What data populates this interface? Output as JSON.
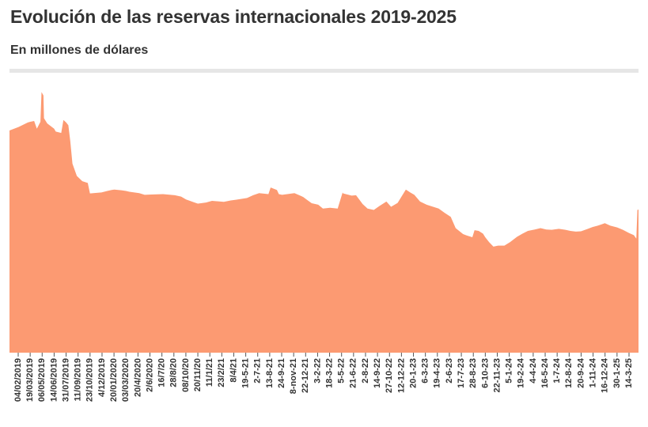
{
  "title": "Evolución de las reservas internacionales 2019-2025",
  "subtitle": "En millones de dólares",
  "colors": {
    "area": "#fc9a72",
    "text": "#333333",
    "rule": "#e6e6e6"
  },
  "chart_data": {
    "type": "area",
    "title": "Evolución de las reservas internacionales 2019-2025",
    "subtitle": "En millones de dólares",
    "xlabel": "",
    "ylabel": "",
    "grid": false,
    "legend": "none",
    "x_tick_labels": [
      "04/02/2019",
      "19/03/2019",
      "06/05/2019",
      "14/06/2019",
      "31/07/2019",
      "11/09/2019",
      "23/10/2019",
      "4/12/2019",
      "20/01/2020",
      "03/03/2020",
      "20/4/2020",
      "2/6/2020",
      "16/7/20",
      "28/8/20",
      "08/10/20",
      "20/11/20",
      "11/1/21",
      "23/2/21",
      "8/4/21",
      "19-5-21",
      "2-7-21",
      "13-8-21",
      "24-9-21",
      "8-nov-21",
      "22-12-21",
      "3-2-22",
      "18-3-22",
      "5-5-22",
      "21-6-22",
      "2-8-22",
      "14-9-22",
      "27-10-22",
      "12-12-22",
      "20-1-23",
      "6-3-23",
      "19-4-23",
      "2-6-23",
      "17-7-23",
      "28-8-23",
      "6-10-23",
      "22-11-23",
      "5-1-24",
      "19-2-24",
      "4-4-24",
      "16-5-24",
      "1-7-24",
      "12-8-24",
      "20-9-24",
      "1-11-24",
      "16-12-24",
      "30-1-25",
      "14-3-25"
    ],
    "points": [
      [
        "2019-01-02",
        63.5
      ],
      [
        "2019-02-04",
        64.5
      ],
      [
        "2019-03-10",
        65.8
      ],
      [
        "2019-03-19",
        66
      ],
      [
        "2019-04-02",
        66.2
      ],
      [
        "2019-04-12",
        64
      ],
      [
        "2019-04-25",
        66
      ],
      [
        "2019-04-29",
        74.5
      ],
      [
        "2019-05-06",
        73.5
      ],
      [
        "2019-05-08",
        67
      ],
      [
        "2019-05-20",
        65.5
      ],
      [
        "2019-06-14",
        64
      ],
      [
        "2019-06-20",
        63.2
      ],
      [
        "2019-07-10",
        62.8
      ],
      [
        "2019-07-18",
        66.5
      ],
      [
        "2019-07-28",
        65.8
      ],
      [
        "2019-08-05",
        65
      ],
      [
        "2019-08-12",
        60.5
      ],
      [
        "2019-08-20",
        54
      ],
      [
        "2019-09-05",
        50.5
      ],
      [
        "2019-09-25",
        49
      ],
      [
        "2019-10-15",
        48.5
      ],
      [
        "2019-10-23",
        45.5
      ],
      [
        "2019-12-04",
        45.8
      ],
      [
        "2019-12-25",
        46.2
      ],
      [
        "2020-01-10",
        46.5
      ],
      [
        "2020-01-20",
        46.6
      ],
      [
        "2020-02-15",
        46.4
      ],
      [
        "2020-03-03",
        46.2
      ],
      [
        "2020-03-15",
        46
      ],
      [
        "2020-04-20",
        45.6
      ],
      [
        "2020-05-10",
        45.1
      ],
      [
        "2020-06-02",
        45.2
      ],
      [
        "2020-07-16",
        45.3
      ],
      [
        "2020-08-28",
        45
      ],
      [
        "2020-09-20",
        44.6
      ],
      [
        "2020-10-08",
        43.8
      ],
      [
        "2020-11-05",
        43
      ],
      [
        "2020-11-20",
        42.6
      ],
      [
        "2020-12-20",
        42.9
      ],
      [
        "2021-01-11",
        43.4
      ],
      [
        "2021-02-23",
        43.1
      ],
      [
        "2021-03-20",
        43.5
      ],
      [
        "2021-04-08",
        43.7
      ],
      [
        "2021-05-19",
        44.2
      ],
      [
        "2021-06-10",
        45
      ],
      [
        "2021-07-02",
        45.6
      ],
      [
        "2021-08-05",
        45.3
      ],
      [
        "2021-08-13",
        47.2
      ],
      [
        "2021-09-05",
        46.5
      ],
      [
        "2021-09-12",
        45.3
      ],
      [
        "2021-09-24",
        45.1
      ],
      [
        "2021-11-08",
        45.6
      ],
      [
        "2021-12-10",
        44.5
      ],
      [
        "2021-12-22",
        43.8
      ],
      [
        "2022-01-10",
        42.7
      ],
      [
        "2022-02-03",
        42.3
      ],
      [
        "2022-02-20",
        41.2
      ],
      [
        "2022-03-18",
        41.4
      ],
      [
        "2022-04-15",
        41.2
      ],
      [
        "2022-05-03",
        45.8
      ],
      [
        "2022-05-05",
        45.5
      ],
      [
        "2022-06-05",
        44.9
      ],
      [
        "2022-06-21",
        45
      ],
      [
        "2022-07-15",
        42.5
      ],
      [
        "2022-08-02",
        41.2
      ],
      [
        "2022-08-25",
        40.8
      ],
      [
        "2022-09-14",
        41.9
      ],
      [
        "2022-10-10",
        43.2
      ],
      [
        "2022-10-27",
        41.7
      ],
      [
        "2022-11-20",
        42.8
      ],
      [
        "2022-12-12",
        45.6
      ],
      [
        "2022-12-20",
        46.6
      ],
      [
        "2023-01-05",
        45.8
      ],
      [
        "2023-01-20",
        45.1
      ],
      [
        "2023-02-10",
        43.2
      ],
      [
        "2023-03-06",
        42.3
      ],
      [
        "2023-03-25",
        41.8
      ],
      [
        "2023-04-19",
        41.2
      ],
      [
        "2023-05-10",
        40
      ],
      [
        "2023-06-02",
        38.8
      ],
      [
        "2023-06-20",
        35.6
      ],
      [
        "2023-07-17",
        33.9
      ],
      [
        "2023-07-30",
        33.5
      ],
      [
        "2023-08-20",
        33
      ],
      [
        "2023-08-28",
        35
      ],
      [
        "2023-09-12",
        34.8
      ],
      [
        "2023-09-28",
        34
      ],
      [
        "2023-10-06",
        33
      ],
      [
        "2023-10-20",
        31.6
      ],
      [
        "2023-11-05",
        30.3
      ],
      [
        "2023-11-22",
        30.6
      ],
      [
        "2023-12-15",
        30.6
      ],
      [
        "2024-01-05",
        31.6
      ],
      [
        "2024-01-30",
        33.1
      ],
      [
        "2024-02-19",
        34
      ],
      [
        "2024-03-10",
        34.8
      ],
      [
        "2024-04-04",
        35.2
      ],
      [
        "2024-04-25",
        35.6
      ],
      [
        "2024-05-16",
        35.2
      ],
      [
        "2024-06-05",
        35.1
      ],
      [
        "2024-07-01",
        35.4
      ],
      [
        "2024-07-25",
        35.1
      ],
      [
        "2024-08-12",
        34.8
      ],
      [
        "2024-09-01",
        34.6
      ],
      [
        "2024-09-20",
        34.7
      ],
      [
        "2024-10-15",
        35.4
      ],
      [
        "2024-11-01",
        35.9
      ],
      [
        "2024-11-20",
        36.3
      ],
      [
        "2024-12-05",
        36.7
      ],
      [
        "2024-12-16",
        37
      ],
      [
        "2025-01-05",
        36.3
      ],
      [
        "2025-01-30",
        35.8
      ],
      [
        "2025-02-20",
        35.1
      ],
      [
        "2025-03-14",
        34.2
      ],
      [
        "2025-04-01",
        33.6
      ],
      [
        "2025-04-10",
        32.6
      ],
      [
        "2025-04-14",
        40.8
      ],
      [
        "2025-04-18",
        40.9
      ]
    ],
    "ylim": [
      0,
      80
    ],
    "xlim": [
      "2019-01-02",
      "2025-04-18"
    ]
  }
}
